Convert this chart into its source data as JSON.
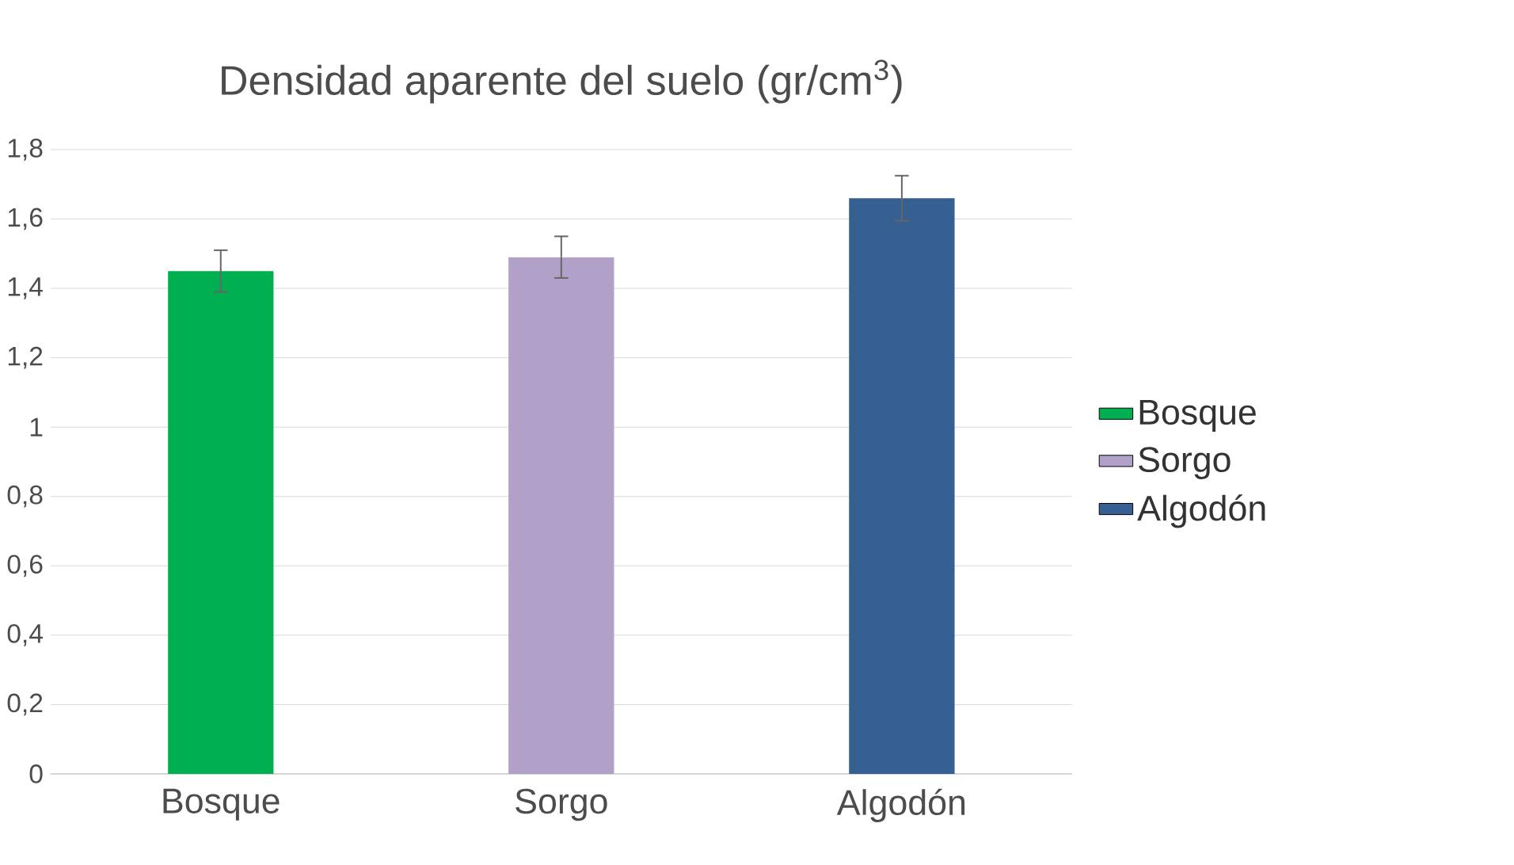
{
  "chart_data": {
    "type": "bar",
    "title": "Densidad aparente del suelo (gr/cm$^{3}$)",
    "categories": [
      "Bosque",
      "Sorgo",
      "Algodón"
    ],
    "series": [
      {
        "name": "Bosque",
        "color": "#00b050",
        "values": [
          1.45,
          null,
          null
        ],
        "errors": [
          0.06,
          null,
          null
        ]
      },
      {
        "name": "Sorgo",
        "color": "#b1a0c7",
        "values": [
          null,
          1.49,
          null
        ],
        "errors": [
          null,
          0.06,
          null
        ]
      },
      {
        "name": "Algodón",
        "color": "#366092",
        "values": [
          null,
          null,
          1.66
        ],
        "errors": [
          null,
          null,
          0.065
        ]
      }
    ],
    "ylim": [
      0,
      1.8
    ],
    "yticks": [
      0,
      {
        "value": 0.2,
        "label": "0,2"
      },
      {
        "value": 0.4,
        "label": "0,4"
      },
      {
        "value": 0.6,
        "label": "0,6"
      },
      {
        "value": 0.8,
        "label": "0,8"
      },
      1,
      {
        "value": 1.2,
        "label": "1,2"
      },
      {
        "value": 1.4,
        "label": "1,4"
      },
      {
        "value": 1.6,
        "label": "1,6"
      },
      {
        "value": 1.8,
        "label": "1,8"
      }
    ],
    "grid": "y",
    "legend": "right"
  }
}
